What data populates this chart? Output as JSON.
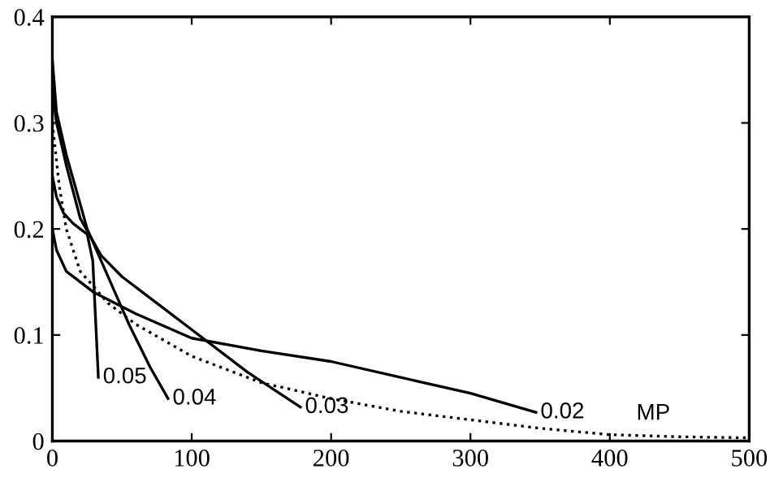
{
  "chart_data": {
    "type": "line",
    "xlim": [
      0,
      500
    ],
    "ylim": [
      0,
      0.4
    ],
    "xticks": [
      0,
      100,
      200,
      300,
      400,
      500
    ],
    "yticks": [
      0,
      0.1,
      0.2,
      0.3,
      0.4
    ],
    "grid": false,
    "legend": false,
    "marker": "none",
    "series": [
      {
        "name": "0.05",
        "color": "#000000",
        "line_style": "solid",
        "x": [
          0,
          3,
          8,
          15,
          25,
          29,
          33
        ],
        "values": [
          0.25,
          0.23,
          0.215,
          0.205,
          0.195,
          0.17,
          0.06
        ]
      },
      {
        "name": "0.04",
        "color": "#000000",
        "line_style": "solid",
        "x": [
          0,
          3,
          10,
          25,
          35,
          45,
          55,
          70,
          83
        ],
        "values": [
          0.36,
          0.31,
          0.27,
          0.2,
          0.17,
          0.14,
          0.11,
          0.07,
          0.04
        ]
      },
      {
        "name": "0.03",
        "color": "#000000",
        "line_style": "solid",
        "x": [
          0,
          3,
          10,
          20,
          35,
          50,
          75,
          100,
          110,
          140,
          178
        ],
        "values": [
          0.33,
          0.3,
          0.26,
          0.21,
          0.175,
          0.155,
          0.13,
          0.105,
          0.095,
          0.065,
          0.032
        ]
      },
      {
        "name": "0.02",
        "color": "#000000",
        "line_style": "solid",
        "x": [
          0,
          3,
          10,
          30,
          60,
          100,
          150,
          200,
          250,
          300,
          347
        ],
        "values": [
          0.2,
          0.18,
          0.16,
          0.14,
          0.12,
          0.097,
          0.085,
          0.075,
          0.06,
          0.045,
          0.027
        ]
      },
      {
        "name": "MP",
        "color": "#000000",
        "line_style": "dotted",
        "x": [
          0,
          5,
          10,
          20,
          40,
          60,
          100,
          150,
          200,
          250,
          300,
          350,
          400,
          450,
          500
        ],
        "values": [
          0.3,
          0.24,
          0.2,
          0.16,
          0.13,
          0.11,
          0.08,
          0.055,
          0.04,
          0.028,
          0.02,
          0.012,
          0.006,
          0.004,
          0.003
        ]
      }
    ]
  }
}
